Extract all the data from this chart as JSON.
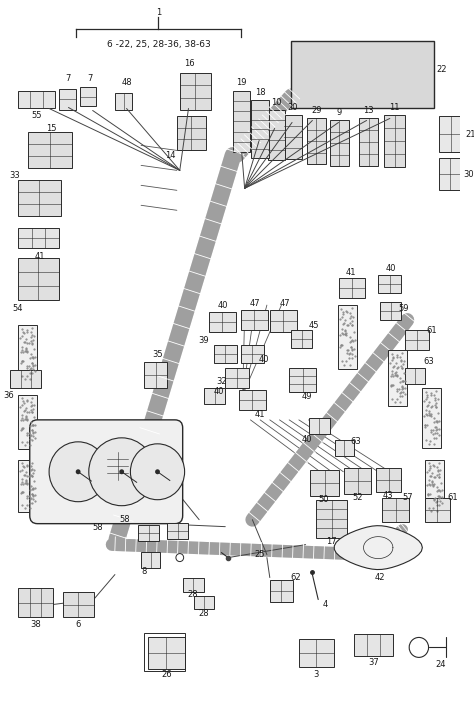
{
  "bg_color": "#ffffff",
  "lc": "#2a2a2a",
  "figsize": [
    4.74,
    7.05
  ],
  "dpi": 100,
  "bracket_label": "6 -22, 25, 28-36, 38-63",
  "gray": "#777777",
  "lgray": "#bbbbbb",
  "dgray": "#444444",
  "fc_conn": "#e8e8e8",
  "fc_light": "#f2f2f2"
}
